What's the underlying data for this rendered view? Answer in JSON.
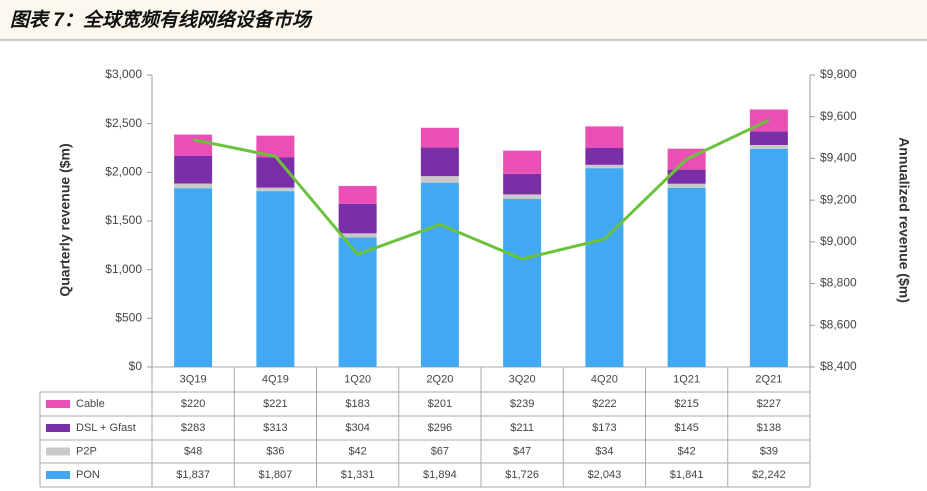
{
  "title": "图表 7：全球宽频有线网络设备市场",
  "chart_data": {
    "type": "bar",
    "stacked": true,
    "y_label": "Quarterly revenue ($m)",
    "y2_label": "Annualized revenue ($m)",
    "categories": [
      "3Q19",
      "4Q19",
      "1Q20",
      "2Q20",
      "3Q20",
      "4Q20",
      "1Q21",
      "2Q21"
    ],
    "series": [
      {
        "name": "Cable",
        "color": "#ea4fb5",
        "values": [
          220,
          221,
          183,
          201,
          239,
          222,
          215,
          227
        ],
        "value_labels": [
          "$220",
          "$221",
          "$183",
          "$201",
          "$239",
          "$222",
          "$215",
          "$227"
        ]
      },
      {
        "name": "DSL + Gfast",
        "color": "#7a2fa8",
        "values": [
          283,
          313,
          304,
          296,
          211,
          173,
          145,
          138
        ],
        "value_labels": [
          "$283",
          "$313",
          "$304",
          "$296",
          "$211",
          "$173",
          "$145",
          "$138"
        ]
      },
      {
        "name": "P2P",
        "color": "#c9c9c9",
        "values": [
          48,
          36,
          42,
          67,
          47,
          34,
          42,
          39
        ],
        "value_labels": [
          "$48",
          "$36",
          "$42",
          "$67",
          "$47",
          "$34",
          "$42",
          "$39"
        ]
      },
      {
        "name": "PON",
        "color": "#41a9f2",
        "values": [
          1837,
          1807,
          1331,
          1894,
          1726,
          2043,
          1841,
          2242
        ],
        "value_labels": [
          "$1,837",
          "$1,807",
          "$1,331",
          "$1,894",
          "$1,726",
          "$2,043",
          "$1,841",
          "$2,242"
        ]
      },
      {
        "type": "line",
        "axis": "y2",
        "color": "#6cc23c",
        "values": [
          9490,
          9410,
          8940,
          9083,
          8918,
          9013,
          9396,
          9584
        ]
      }
    ],
    "ylim": [
      0,
      3000
    ],
    "yticks": [
      {
        "value": 0,
        "label": "$0"
      },
      {
        "value": 500,
        "label": "$500"
      },
      {
        "value": 1000,
        "label": "$1,000"
      },
      {
        "value": 1500,
        "label": "$1,500"
      },
      {
        "value": 2000,
        "label": "$2,000"
      },
      {
        "value": 2500,
        "label": "$2,500"
      },
      {
        "value": 3000,
        "label": "$3,000"
      }
    ],
    "y2lim": [
      8400,
      9800
    ],
    "y2ticks": [
      {
        "value": 8400,
        "label": "$8,400"
      },
      {
        "value": 8600,
        "label": "$8,600"
      },
      {
        "value": 8800,
        "label": "$8,800"
      },
      {
        "value": 9000,
        "label": "$9,000"
      },
      {
        "value": 9200,
        "label": "$9,200"
      },
      {
        "value": 9400,
        "label": "$9,400"
      },
      {
        "value": 9600,
        "label": "$9,600"
      },
      {
        "value": 9800,
        "label": "$9,800"
      }
    ]
  }
}
